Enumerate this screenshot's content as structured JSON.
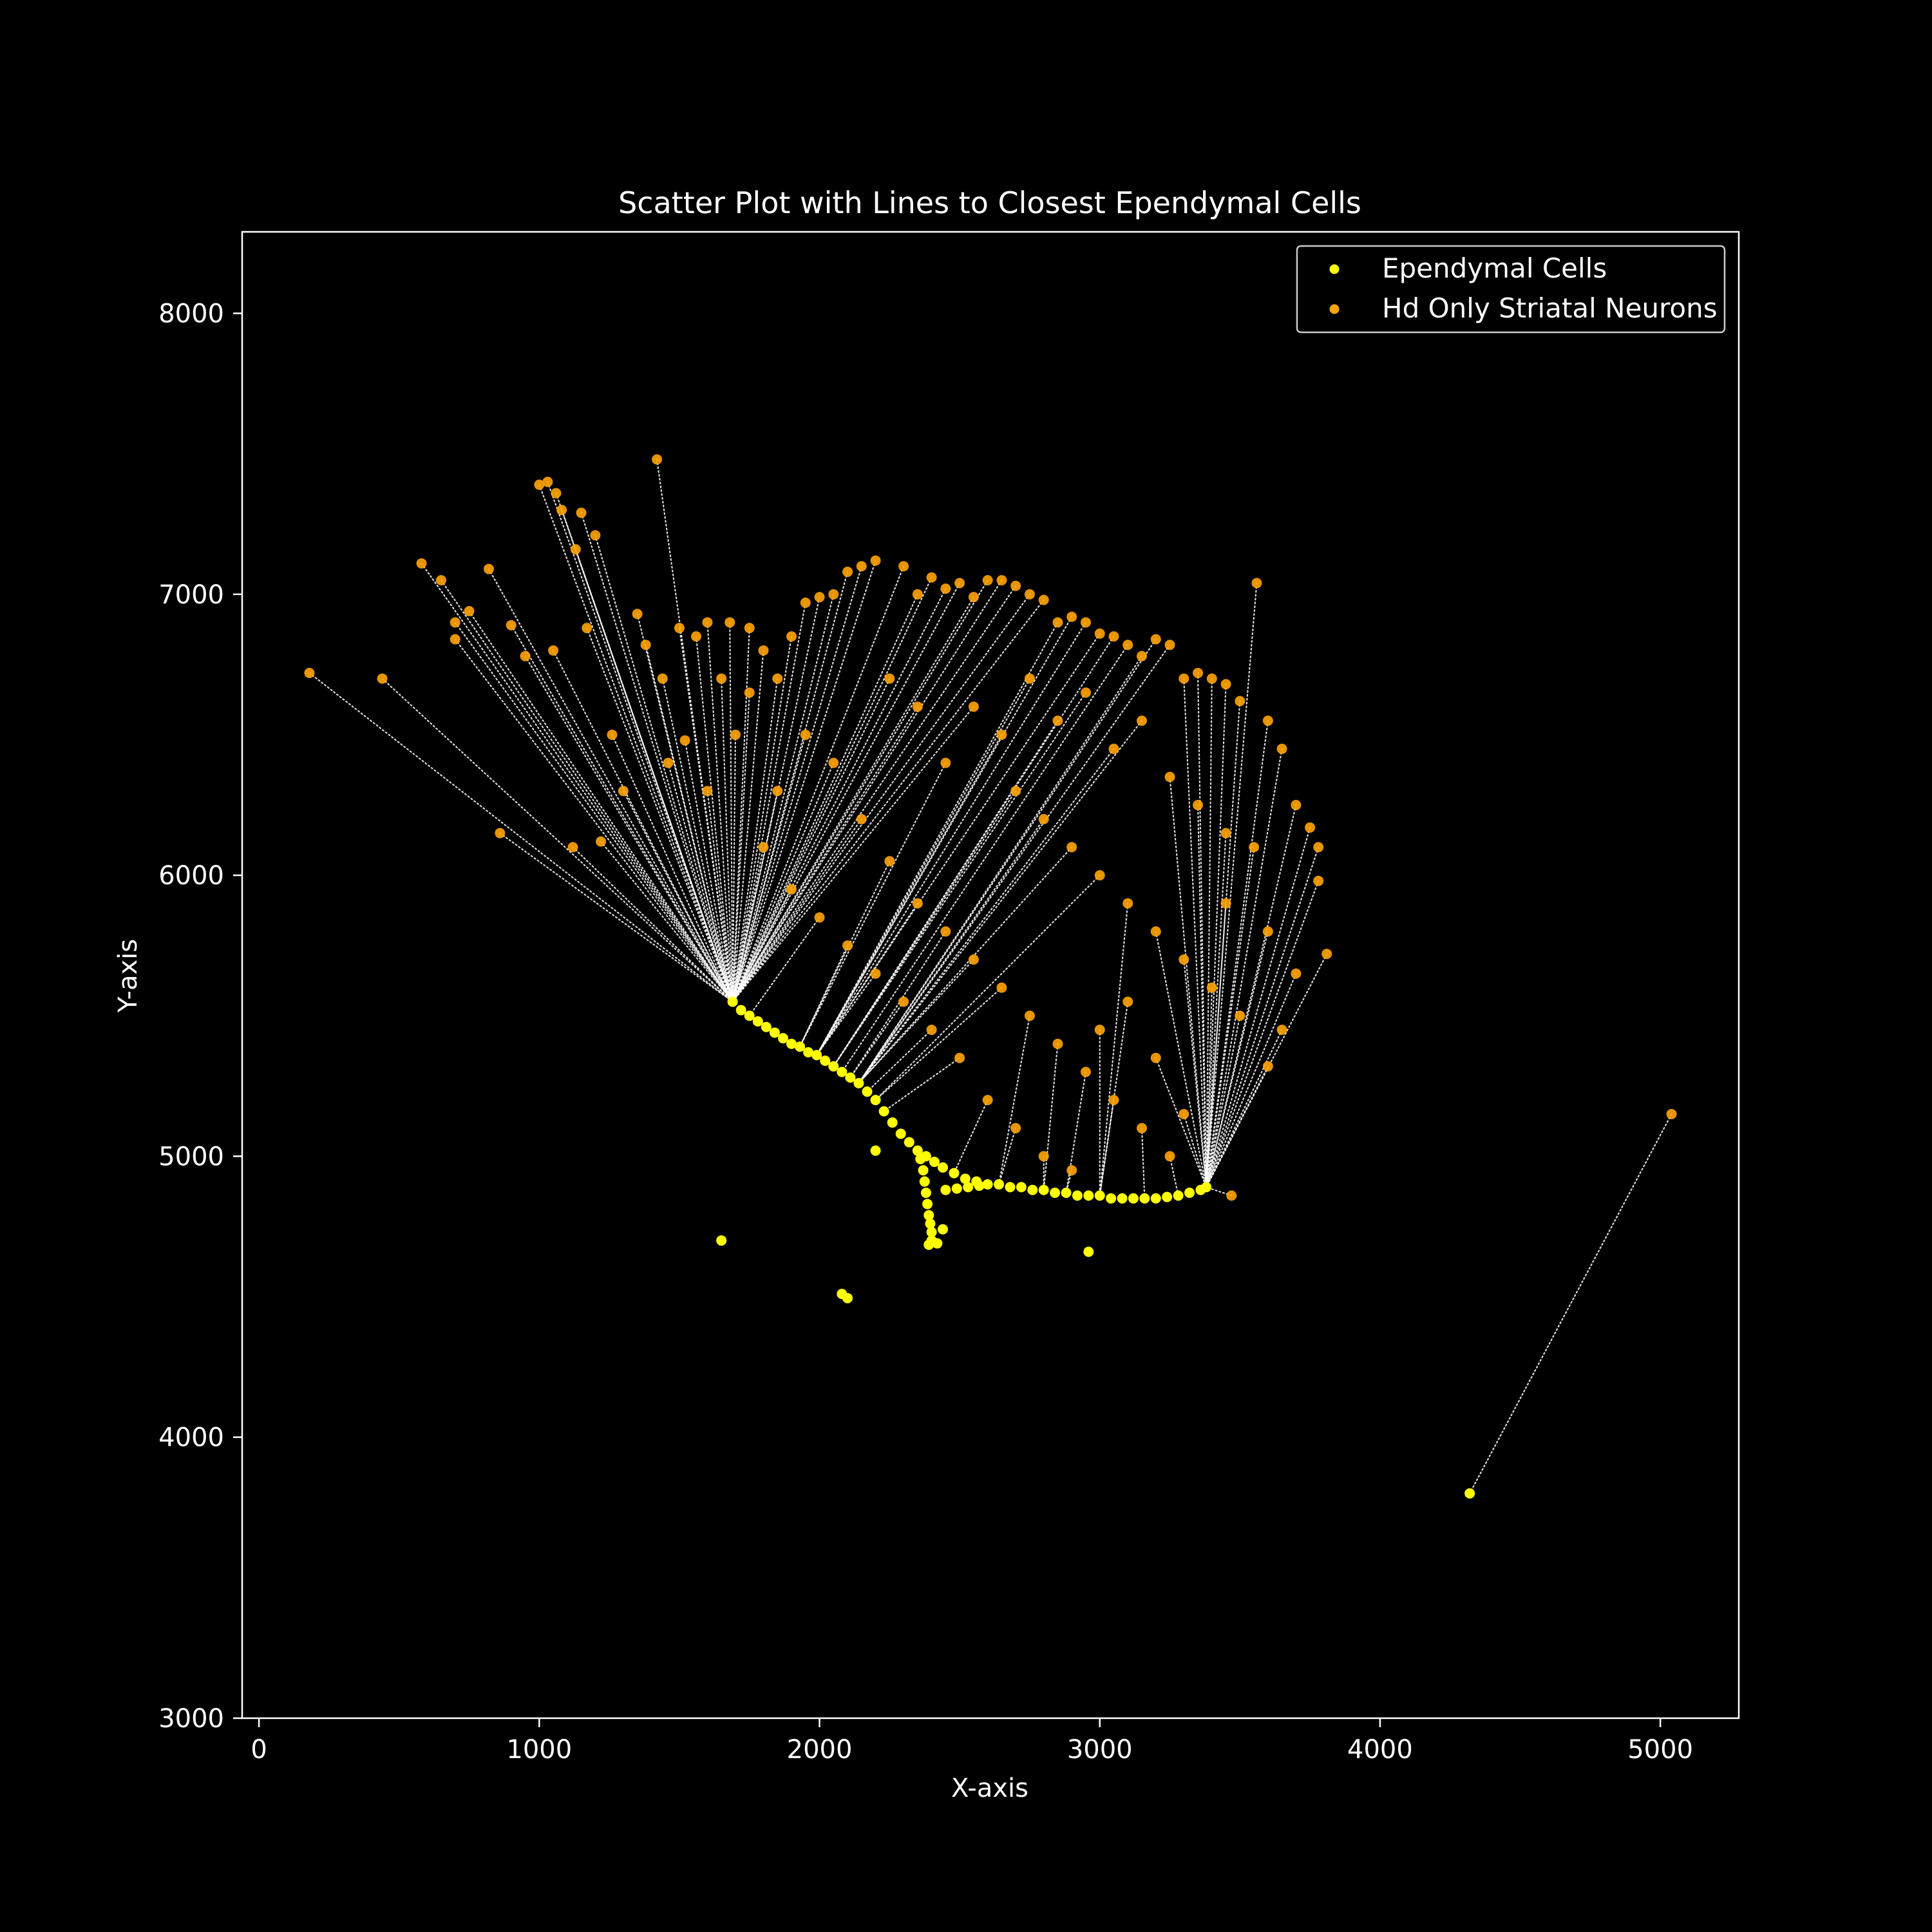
{
  "chart_data": {
    "type": "scatter",
    "title": "Scatter Plot with Lines to Closest Ependymal Cells",
    "xlabel": "X-axis",
    "ylabel": "Y-axis",
    "xlim": [
      -60,
      5280
    ],
    "ylim": [
      3000,
      8290
    ],
    "x_ticks": [
      0,
      1000,
      2000,
      3000,
      4000,
      5000
    ],
    "y_ticks": [
      3000,
      4000,
      5000,
      6000,
      7000,
      8000
    ],
    "grid": false,
    "legend_position": "top-right",
    "background_color": "#000000",
    "connector_color": "#ffffff",
    "series": [
      {
        "name": "Ependymal Cells",
        "color": "#ffff00",
        "points": [
          [
            1690,
            5550
          ],
          [
            1720,
            5520
          ],
          [
            1750,
            5500
          ],
          [
            1780,
            5480
          ],
          [
            1810,
            5460
          ],
          [
            1840,
            5440
          ],
          [
            1870,
            5420
          ],
          [
            1900,
            5400
          ],
          [
            1930,
            5390
          ],
          [
            1960,
            5370
          ],
          [
            1990,
            5360
          ],
          [
            2020,
            5340
          ],
          [
            2050,
            5320
          ],
          [
            2080,
            5300
          ],
          [
            2110,
            5280
          ],
          [
            2140,
            5260
          ],
          [
            2170,
            5230
          ],
          [
            2200,
            5200
          ],
          [
            2230,
            5160
          ],
          [
            2260,
            5120
          ],
          [
            2290,
            5080
          ],
          [
            2320,
            5050
          ],
          [
            2350,
            5020
          ],
          [
            2380,
            5000
          ],
          [
            2410,
            4980
          ],
          [
            2440,
            4960
          ],
          [
            2480,
            4940
          ],
          [
            2520,
            4920
          ],
          [
            2560,
            4910
          ],
          [
            2600,
            4900
          ],
          [
            2640,
            4900
          ],
          [
            2680,
            4890
          ],
          [
            2720,
            4890
          ],
          [
            2760,
            4880
          ],
          [
            2800,
            4880
          ],
          [
            2840,
            4870
          ],
          [
            2880,
            4870
          ],
          [
            2920,
            4860
          ],
          [
            2960,
            4860
          ],
          [
            3000,
            4860
          ],
          [
            3040,
            4850
          ],
          [
            3080,
            4850
          ],
          [
            3120,
            4850
          ],
          [
            3160,
            4850
          ],
          [
            3200,
            4850
          ],
          [
            3240,
            4855
          ],
          [
            3280,
            4860
          ],
          [
            3320,
            4870
          ],
          [
            3360,
            4880
          ],
          [
            3380,
            4890
          ],
          [
            2450,
            4880
          ],
          [
            2490,
            4885
          ],
          [
            2530,
            4890
          ],
          [
            2570,
            4895
          ],
          [
            2360,
            4990
          ],
          [
            2370,
            4950
          ],
          [
            2375,
            4910
          ],
          [
            2380,
            4870
          ],
          [
            2385,
            4830
          ],
          [
            2390,
            4790
          ],
          [
            2395,
            4760
          ],
          [
            2400,
            4730
          ],
          [
            2400,
            4700
          ],
          [
            2390,
            4685
          ],
          [
            2420,
            4690
          ],
          [
            2440,
            4740
          ],
          [
            2200,
            5020
          ],
          [
            1650,
            4700
          ],
          [
            2080,
            4510
          ],
          [
            2100,
            4495
          ],
          [
            2960,
            4660
          ],
          [
            4320,
            3800
          ]
        ]
      },
      {
        "name": "Hd Only Striatal Neurons",
        "color": "#ffa500",
        "points": [
          [
            180,
            6720
          ],
          [
            440,
            6700
          ],
          [
            860,
            6150
          ],
          [
            1120,
            6100
          ],
          [
            580,
            7110
          ],
          [
            650,
            7050
          ],
          [
            700,
            6900
          ],
          [
            700,
            6840
          ],
          [
            750,
            6940
          ],
          [
            820,
            7090
          ],
          [
            900,
            6890
          ],
          [
            950,
            6780
          ],
          [
            1000,
            7390
          ],
          [
            1030,
            7400
          ],
          [
            1060,
            7360
          ],
          [
            1080,
            7300
          ],
          [
            1150,
            7290
          ],
          [
            1200,
            7210
          ],
          [
            1130,
            7160
          ],
          [
            1050,
            6800
          ],
          [
            1170,
            6880
          ],
          [
            1420,
            7480
          ],
          [
            1260,
            6500
          ],
          [
            1300,
            6300
          ],
          [
            1220,
            6120
          ],
          [
            1350,
            6930
          ],
          [
            1380,
            6820
          ],
          [
            1440,
            6700
          ],
          [
            1500,
            6880
          ],
          [
            1520,
            6480
          ],
          [
            1460,
            6400
          ],
          [
            1560,
            6850
          ],
          [
            1600,
            6900
          ],
          [
            1680,
            6900
          ],
          [
            1750,
            6880
          ],
          [
            1800,
            6800
          ],
          [
            1850,
            6700
          ],
          [
            1900,
            6850
          ],
          [
            1950,
            6970
          ],
          [
            2000,
            6990
          ],
          [
            2050,
            7000
          ],
          [
            2100,
            7080
          ],
          [
            2150,
            7100
          ],
          [
            2200,
            7120
          ],
          [
            2300,
            7100
          ],
          [
            2350,
            7000
          ],
          [
            2400,
            7060
          ],
          [
            2450,
            7020
          ],
          [
            2500,
            7040
          ],
          [
            2550,
            6990
          ],
          [
            2600,
            7050
          ],
          [
            2650,
            7050
          ],
          [
            2700,
            7030
          ],
          [
            2750,
            7000
          ],
          [
            2800,
            6980
          ],
          [
            2850,
            6900
          ],
          [
            2900,
            6920
          ],
          [
            2950,
            6900
          ],
          [
            3000,
            6860
          ],
          [
            3050,
            6850
          ],
          [
            3100,
            6820
          ],
          [
            3150,
            6780
          ],
          [
            3200,
            6840
          ],
          [
            3250,
            6820
          ],
          [
            3300,
            6700
          ],
          [
            3350,
            6720
          ],
          [
            3400,
            6700
          ],
          [
            3450,
            6680
          ],
          [
            3500,
            6620
          ],
          [
            3560,
            7040
          ],
          [
            3600,
            6550
          ],
          [
            3650,
            6450
          ],
          [
            3700,
            6250
          ],
          [
            3750,
            6170
          ],
          [
            3780,
            6100
          ],
          [
            3780,
            5980
          ],
          [
            3810,
            5720
          ],
          [
            3700,
            5650
          ],
          [
            3650,
            5450
          ],
          [
            3600,
            5320
          ],
          [
            3470,
            4860
          ],
          [
            5040,
            5150
          ],
          [
            1600,
            6300
          ],
          [
            1700,
            6500
          ],
          [
            1800,
            6100
          ],
          [
            1900,
            5950
          ],
          [
            2000,
            5850
          ],
          [
            2100,
            5750
          ],
          [
            2200,
            5650
          ],
          [
            2300,
            5550
          ],
          [
            2400,
            5450
          ],
          [
            2500,
            5350
          ],
          [
            2050,
            6400
          ],
          [
            2150,
            6200
          ],
          [
            2250,
            6050
          ],
          [
            2350,
            5900
          ],
          [
            2450,
            5800
          ],
          [
            2550,
            5700
          ],
          [
            2650,
            5600
          ],
          [
            2750,
            5500
          ],
          [
            2850,
            5400
          ],
          [
            2950,
            5300
          ],
          [
            3050,
            5200
          ],
          [
            3150,
            5100
          ],
          [
            3250,
            5000
          ],
          [
            2700,
            6300
          ],
          [
            2800,
            6200
          ],
          [
            2900,
            6100
          ],
          [
            3000,
            6000
          ],
          [
            3100,
            5900
          ],
          [
            3200,
            5800
          ],
          [
            3300,
            5700
          ],
          [
            3400,
            5600
          ],
          [
            3500,
            5500
          ],
          [
            2600,
            5200
          ],
          [
            2700,
            5100
          ],
          [
            2800,
            5000
          ],
          [
            2900,
            4950
          ],
          [
            3000,
            5450
          ],
          [
            3100,
            5550
          ],
          [
            3200,
            5350
          ],
          [
            3300,
            5150
          ],
          [
            3450,
            5900
          ],
          [
            3550,
            6100
          ],
          [
            3600,
            5800
          ],
          [
            2550,
            6600
          ],
          [
            2650,
            6500
          ],
          [
            2750,
            6700
          ],
          [
            2850,
            6550
          ],
          [
            2950,
            6650
          ],
          [
            3050,
            6450
          ],
          [
            3150,
            6550
          ],
          [
            3250,
            6350
          ],
          [
            3350,
            6250
          ],
          [
            3450,
            6150
          ],
          [
            1950,
            6500
          ],
          [
            1850,
            6300
          ],
          [
            2250,
            6700
          ],
          [
            2350,
            6600
          ],
          [
            2450,
            6400
          ],
          [
            1750,
            6650
          ],
          [
            1650,
            6700
          ]
        ]
      }
    ]
  }
}
